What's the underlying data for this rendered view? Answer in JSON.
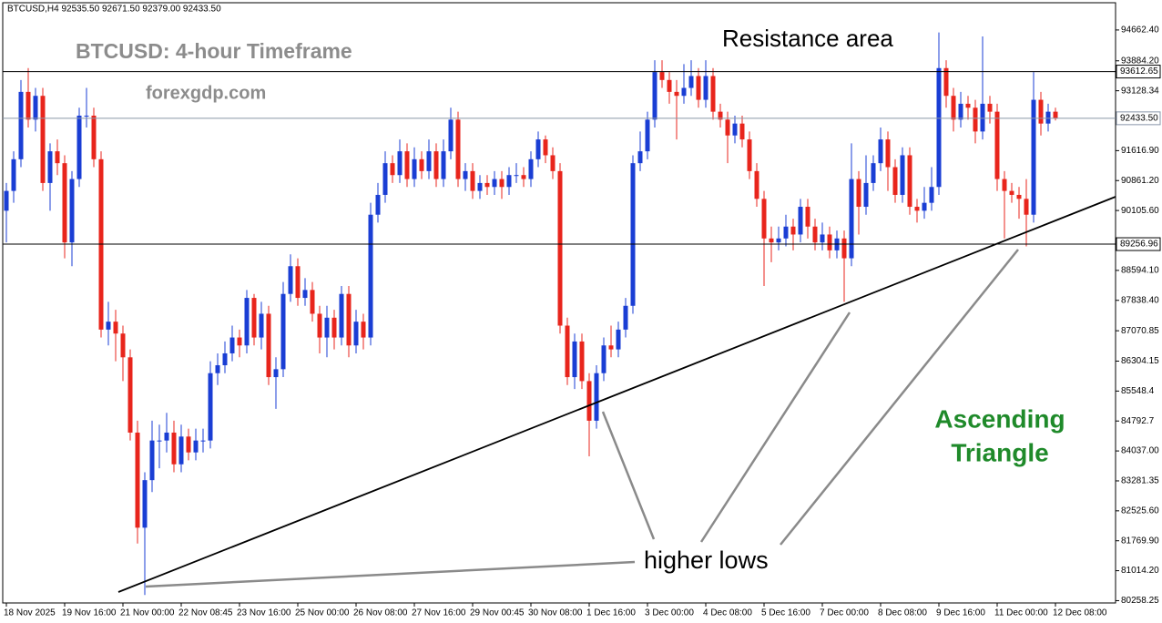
{
  "chart_data": {
    "type": "candlestick",
    "header": "BTCUSD,H4  92535.50 92671.50 92379.00 92433.50",
    "title": "BTCUSD: 4-hour Timeframe",
    "subtitle": "forexgdp.com",
    "annotations": {
      "resistance": "Resistance area",
      "pattern": [
        "Ascending",
        "Triangle"
      ],
      "lows": "higher lows"
    },
    "up_color": "#1a3ed4",
    "down_color": "#e8251c",
    "ylim": [
      80200,
      95350
    ],
    "yticks": [
      {
        "value": 94662.4,
        "label": "94662.40"
      },
      {
        "value": 93884.2,
        "label": "93884.20"
      },
      {
        "value": 93128.34,
        "label": "93128.34"
      },
      {
        "value": 91616.9,
        "label": "91616.90"
      },
      {
        "value": 90861.2,
        "label": "90861.20"
      },
      {
        "value": 90105.6,
        "label": "90105.60"
      },
      {
        "value": 88594.1,
        "label": "88594.10"
      },
      {
        "value": 87838.4,
        "label": "87838.40"
      },
      87070.85,
      86304.15,
      85548.4,
      84792.7,
      {
        "value": 84037.0,
        "label": "84037.00"
      },
      83281.35,
      {
        "value": 82525.6,
        "label": "82525.60"
      },
      {
        "value": 81769.9,
        "label": "81769.90"
      },
      {
        "value": 81014.2,
        "label": "81014.20"
      },
      80258.25
    ],
    "hlines": [
      {
        "value": 93612.65,
        "color": "#000000"
      },
      {
        "value": 92433.5,
        "label": "92433.50",
        "color": "#8a96a8"
      },
      {
        "value": 89256.96,
        "color": "#000000"
      }
    ],
    "categories": [
      "18 Nov 2025",
      null,
      null,
      null,
      null,
      null,
      null,
      null,
      "19 Nov 16:00",
      null,
      null,
      null,
      null,
      null,
      null,
      null,
      "21 Nov 00:00",
      null,
      null,
      null,
      null,
      null,
      null,
      null,
      "22 Nov 08:45",
      null,
      null,
      null,
      null,
      null,
      null,
      null,
      "23 Nov 16:00",
      null,
      null,
      null,
      null,
      null,
      null,
      null,
      "25 Nov 00:00",
      null,
      null,
      null,
      null,
      null,
      null,
      null,
      "26 Nov 08:00",
      null,
      null,
      null,
      null,
      null,
      null,
      null,
      "27 Nov 16:00",
      null,
      null,
      null,
      null,
      null,
      null,
      null,
      "29 Nov 00:45",
      null,
      null,
      null,
      null,
      null,
      null,
      null,
      "30 Nov 08:00",
      null,
      null,
      null,
      null,
      null,
      null,
      null,
      "1 Dec 16:00",
      null,
      null,
      null,
      null,
      null,
      null,
      null,
      "3 Dec 00:00",
      null,
      null,
      null,
      null,
      null,
      null,
      null,
      "4 Dec 08:00",
      null,
      null,
      null,
      null,
      null,
      null,
      null,
      "5 Dec 16:00",
      null,
      null,
      null,
      null,
      null,
      null,
      null,
      "7 Dec 00:00",
      null,
      null,
      null,
      null,
      null,
      null,
      null,
      "8 Dec 08:00",
      null,
      null,
      null,
      null,
      null,
      null,
      null,
      "9 Dec 16:00",
      null,
      null,
      null,
      null,
      null,
      null,
      null,
      "11 Dec 00:00",
      null,
      null,
      null,
      null,
      null,
      null,
      null,
      "12 Dec 08:00"
    ],
    "ohlc": [
      [
        90100,
        90800,
        89300,
        90600
      ],
      [
        90600,
        91600,
        90300,
        91400
      ],
      [
        91400,
        93400,
        91200,
        93100
      ],
      [
        93100,
        93700,
        92200,
        92400
      ],
      [
        92400,
        93200,
        92100,
        93000
      ],
      [
        93000,
        93200,
        90600,
        90800
      ],
      [
        90800,
        91800,
        90100,
        91600
      ],
      [
        91600,
        91900,
        91000,
        91300
      ],
      [
        91300,
        91500,
        88900,
        89300
      ],
      [
        89300,
        91100,
        88700,
        90900
      ],
      [
        90900,
        92700,
        90700,
        92500
      ],
      [
        92500,
        93200,
        92200,
        92500
      ],
      [
        92500,
        92700,
        91200,
        91400
      ],
      [
        91400,
        91600,
        86900,
        87100
      ],
      [
        87100,
        87800,
        86700,
        87300
      ],
      [
        87300,
        87600,
        86300,
        87000
      ],
      [
        87000,
        87200,
        85800,
        86400
      ],
      [
        86400,
        86600,
        84300,
        84500
      ],
      [
        84500,
        84800,
        81700,
        82100
      ],
      [
        82100,
        83500,
        80400,
        83300
      ],
      [
        83300,
        84800,
        83000,
        84300
      ],
      [
        84300,
        84700,
        83600,
        84300
      ],
      [
        84300,
        85000,
        84000,
        84500
      ],
      [
        84500,
        84800,
        83500,
        83700
      ],
      [
        83700,
        84700,
        83500,
        84400
      ],
      [
        84400,
        84600,
        83800,
        84000
      ],
      [
        84000,
        84600,
        83800,
        84300
      ],
      [
        84300,
        84600,
        84000,
        84300
      ],
      [
        84300,
        86300,
        84100,
        86000
      ],
      [
        86000,
        86500,
        85700,
        86200
      ],
      [
        86200,
        86800,
        86000,
        86500
      ],
      [
        86500,
        87200,
        86300,
        86900
      ],
      [
        86900,
        87100,
        86400,
        86700
      ],
      [
        86700,
        88100,
        86500,
        87900
      ],
      [
        87900,
        88000,
        86700,
        86900
      ],
      [
        86900,
        87800,
        86600,
        87500
      ],
      [
        87500,
        87700,
        85700,
        85900
      ],
      [
        85900,
        86400,
        85100,
        86100
      ],
      [
        86100,
        88300,
        85900,
        88000
      ],
      [
        88000,
        89000,
        87800,
        88700
      ],
      [
        88700,
        88900,
        87700,
        87900
      ],
      [
        87900,
        88400,
        87700,
        88100
      ],
      [
        88100,
        88300,
        87300,
        87500
      ],
      [
        87500,
        87700,
        86500,
        86900
      ],
      [
        86900,
        87700,
        86400,
        87400
      ],
      [
        87400,
        87600,
        86600,
        86900
      ],
      [
        86900,
        88200,
        86700,
        88000
      ],
      [
        88000,
        88200,
        86400,
        86700
      ],
      [
        86700,
        87600,
        86500,
        87300
      ],
      [
        87300,
        87500,
        86600,
        86900
      ],
      [
        86900,
        90300,
        86700,
        90000
      ],
      [
        90000,
        90800,
        89800,
        90500
      ],
      [
        90500,
        91600,
        90300,
        91300
      ],
      [
        91300,
        91500,
        90800,
        91000
      ],
      [
        91000,
        91900,
        90800,
        91600
      ],
      [
        91600,
        91800,
        90700,
        90900
      ],
      [
        90900,
        91700,
        90700,
        91400
      ],
      [
        91400,
        91600,
        90900,
        91100
      ],
      [
        91100,
        91900,
        90900,
        91600
      ],
      [
        91600,
        91800,
        90700,
        90900
      ],
      [
        90900,
        91900,
        90700,
        91600
      ],
      [
        91600,
        92700,
        91400,
        92400
      ],
      [
        92400,
        92600,
        90700,
        90900
      ],
      [
        90900,
        91300,
        90600,
        91100
      ],
      [
        91100,
        91300,
        90400,
        90600
      ],
      [
        90600,
        91000,
        90400,
        90800
      ],
      [
        90800,
        91000,
        90500,
        90700
      ],
      [
        90700,
        91100,
        90500,
        90900
      ],
      [
        90900,
        91100,
        90400,
        90700
      ],
      [
        90700,
        91200,
        90500,
        91000
      ],
      [
        91000,
        91300,
        90800,
        91000
      ],
      [
        91000,
        91200,
        90700,
        90900
      ],
      [
        90900,
        91600,
        90700,
        91400
      ],
      [
        91400,
        92100,
        91200,
        91900
      ],
      [
        91900,
        92000,
        91300,
        91500
      ],
      [
        91500,
        91700,
        90900,
        91100
      ],
      [
        91100,
        91300,
        87000,
        87200
      ],
      [
        87200,
        87400,
        85700,
        85900
      ],
      [
        85900,
        87000,
        85600,
        86800
      ],
      [
        86800,
        87000,
        85600,
        85800
      ],
      [
        85800,
        86000,
        83900,
        84800
      ],
      [
        84800,
        86200,
        84600,
        86000
      ],
      [
        86000,
        86900,
        85800,
        86700
      ],
      [
        86700,
        87200,
        86400,
        86600
      ],
      [
        86600,
        87300,
        86400,
        87100
      ],
      [
        87100,
        87900,
        86900,
        87700
      ],
      [
        87700,
        91500,
        87500,
        91300
      ],
      [
        91300,
        92100,
        91100,
        91600
      ],
      [
        91600,
        92600,
        91400,
        92400
      ],
      [
        92400,
        93900,
        92200,
        93600
      ],
      [
        93600,
        93900,
        93200,
        93400
      ],
      [
        93400,
        93600,
        92800,
        93100
      ],
      [
        93100,
        93400,
        91900,
        93000
      ],
      [
        93000,
        93800,
        92800,
        93200
      ],
      [
        93200,
        93900,
        93000,
        93500
      ],
      [
        93500,
        93700,
        92700,
        92900
      ],
      [
        92900,
        93900,
        92700,
        93500
      ],
      [
        93500,
        93700,
        92400,
        92600
      ],
      [
        92600,
        92800,
        92200,
        92400
      ],
      [
        92400,
        92600,
        91300,
        92000
      ],
      [
        92000,
        92500,
        91800,
        92300
      ],
      [
        92300,
        92500,
        91700,
        91900
      ],
      [
        91900,
        92100,
        90900,
        91100
      ],
      [
        91100,
        91300,
        90200,
        90400
      ],
      [
        90400,
        90600,
        88200,
        89400
      ],
      [
        89400,
        89700,
        88800,
        89300
      ],
      [
        89300,
        89700,
        89100,
        89400
      ],
      [
        89400,
        90000,
        89200,
        89700
      ],
      [
        89700,
        89900,
        89100,
        89500
      ],
      [
        89500,
        90400,
        89300,
        90200
      ],
      [
        90200,
        90400,
        89400,
        89700
      ],
      [
        89700,
        89900,
        89100,
        89300
      ],
      [
        89300,
        89800,
        89100,
        89500
      ],
      [
        89500,
        89700,
        88900,
        89100
      ],
      [
        89100,
        89600,
        88900,
        89400
      ],
      [
        89400,
        89600,
        87800,
        88900
      ],
      [
        88900,
        91800,
        88700,
        90900
      ],
      [
        90900,
        91100,
        89500,
        90200
      ],
      [
        90200,
        91500,
        90000,
        90800
      ],
      [
        90800,
        91500,
        90600,
        91300
      ],
      [
        91300,
        92200,
        91100,
        91900
      ],
      [
        91900,
        92100,
        90600,
        91200
      ],
      [
        91200,
        91400,
        90300,
        90500
      ],
      [
        90500,
        91700,
        90300,
        91500
      ],
      [
        91500,
        91700,
        90000,
        90200
      ],
      [
        90200,
        90400,
        89800,
        90100
      ],
      [
        90100,
        90700,
        89900,
        90300
      ],
      [
        90300,
        91200,
        90100,
        90700
      ],
      [
        90700,
        94600,
        90500,
        93700
      ],
      [
        93700,
        93900,
        92700,
        93000
      ],
      [
        93000,
        93200,
        92100,
        92400
      ],
      [
        92400,
        93100,
        92200,
        92800
      ],
      [
        92800,
        93000,
        92400,
        92700
      ],
      [
        92700,
        92900,
        91800,
        92100
      ],
      [
        92100,
        94500,
        91900,
        92800
      ],
      [
        92800,
        93000,
        92300,
        92600
      ],
      [
        92600,
        92800,
        90600,
        90900
      ],
      [
        90900,
        91100,
        89400,
        90600
      ],
      [
        90600,
        90800,
        90300,
        90500
      ],
      [
        90500,
        90700,
        89900,
        90400
      ],
      [
        90400,
        90900,
        89200,
        90000
      ],
      [
        90000,
        93600,
        89800,
        92900
      ],
      [
        92900,
        93100,
        92000,
        92300
      ],
      [
        92300,
        92800,
        92100,
        92600
      ],
      [
        92600,
        92700,
        92380,
        92430
      ]
    ]
  }
}
